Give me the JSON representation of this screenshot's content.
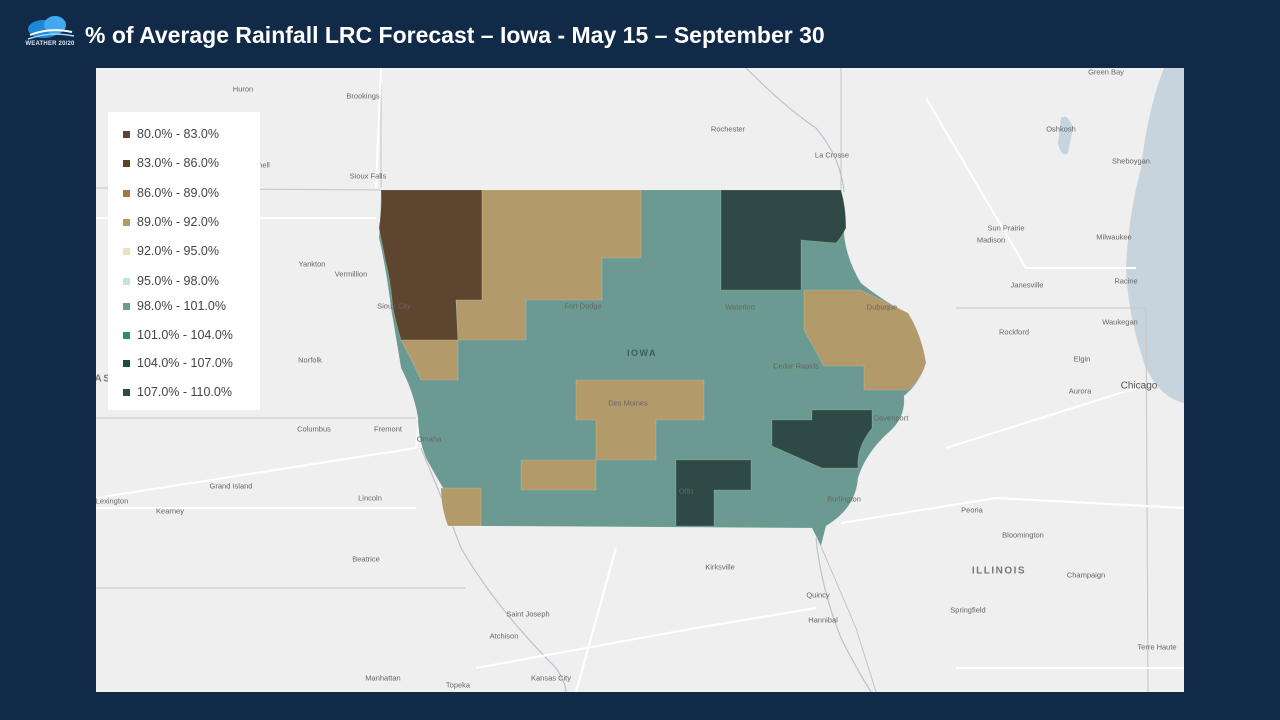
{
  "header": {
    "logo_text": "WEATHER 20/20",
    "title": "% of Average Rainfall LRC Forecast – Iowa - May 15 – September 30"
  },
  "colors": {
    "page_background": "#112a48",
    "map_background": "#efefef",
    "c80_83": "#5e4530",
    "c83_86": "#5a4128",
    "c86_89": "#a07a44",
    "c89_92": "#b39a6b",
    "c92_95": "#ece0c4",
    "c95_98": "#c0e4df",
    "c98_101": "#6b9a93",
    "c101_104": "#2f8a7e",
    "c104_107": "#1e4a40",
    "c107_110": "#2f4a46"
  },
  "legend": {
    "items": [
      {
        "label": "80.0% - 83.0%",
        "color": "#5e4530"
      },
      {
        "label": "83.0% - 86.0%",
        "color": "#5a4128"
      },
      {
        "label": "86.0% - 89.0%",
        "color": "#a07a44"
      },
      {
        "label": "89.0% - 92.0%",
        "color": "#b39a6b"
      },
      {
        "label": "92.0% - 95.0%",
        "color": "#ece0c4"
      },
      {
        "label": "95.0% - 98.0%",
        "color": "#c0e4df"
      },
      {
        "label": "98.0% - 101.0%",
        "color": "#6b9a93"
      },
      {
        "label": "101.0% - 104.0%",
        "color": "#2f8a7e"
      },
      {
        "label": "104.0% - 107.0%",
        "color": "#1e4a40"
      },
      {
        "label": "107.0% - 110.0%",
        "color": "#2f4a46"
      }
    ]
  },
  "map": {
    "state_label": "IOWA",
    "places": {
      "huron": "Huron",
      "brookings": "Brookings",
      "sioux_falls": "Sioux Falls",
      "mitchell": "hell",
      "yankton": "Yankton",
      "vermillion": "Vermillion",
      "sioux_city": "Sioux City",
      "norfolk": "Norfolk",
      "columbus": "Columbus",
      "fremont": "Fremont",
      "omaha": "Omaha",
      "grand_island": "Grand Island",
      "lincoln": "Lincoln",
      "lexington": "Lexington",
      "kearney": "Kearney",
      "beatrice": "Beatrice",
      "nebraska_edge": "AS",
      "rochester": "Rochester",
      "la_crosse": "La Crosse",
      "fort_dodge": "Fort Dodge",
      "waterloo": "Waterloo",
      "des_moines": "Des Moines",
      "cedar_rapids": "Cedar Rapids",
      "dubuque": "Dubuque",
      "davenport": "Davenport",
      "burlington": "Burlington",
      "ottumwa": "Ottu",
      "kirksville": "Kirksville",
      "quincy": "Quincy",
      "hannibal": "Hannibal",
      "saint_joseph": "Saint Joseph",
      "atchison": "Atchison",
      "kansas_city": "Kansas City",
      "topeka": "Topeka",
      "manhattan": "Manhattan",
      "green_bay": "Green Bay",
      "oshkosh": "Oshkosh",
      "sheboygan": "Sheboygan",
      "sun_prairie": "Sun Prairie",
      "madison": "Madison",
      "milwaukee": "Milwaukee",
      "janesville": "Janesville",
      "racine": "Racine",
      "waukegan": "Waukegan",
      "rockford": "Rockford",
      "elgin": "Elgin",
      "aurora": "Aurora",
      "chicago": "Chicago",
      "peoria": "Peoria",
      "bloomington": "Bloomington",
      "illinois": "ILLINOIS",
      "champaign": "Champaign",
      "springfield": "Springfield",
      "terre_haute": "Terre Haute"
    }
  }
}
